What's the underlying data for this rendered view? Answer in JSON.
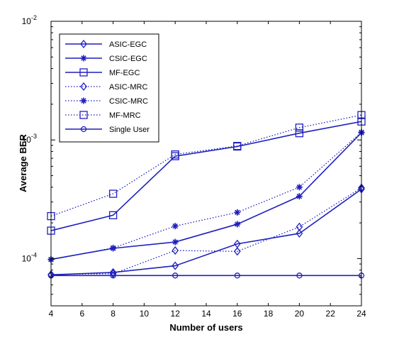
{
  "chart_data": {
    "type": "line",
    "xlabel": "Number of users",
    "ylabel": "Average BER",
    "x": [
      4,
      8,
      12,
      16,
      20,
      24
    ],
    "xlim": [
      4,
      24
    ],
    "xticks": [
      4,
      6,
      8,
      10,
      12,
      14,
      16,
      18,
      20,
      22,
      24
    ],
    "yscale": "log",
    "ylim": [
      4e-05,
      0.01
    ],
    "yticks": [
      {
        "value": 0.0001,
        "base": "10",
        "exp": "-4"
      },
      {
        "value": 0.001,
        "base": "10",
        "exp": "-3"
      },
      {
        "value": 0.01,
        "base": "10",
        "exp": "-2"
      }
    ],
    "grid": false,
    "legend_position": "top-left",
    "line_color": "#1f1fbf",
    "series": [
      {
        "name": "ASIC-EGC",
        "marker": "diamond",
        "linestyle": "solid",
        "values": [
          7.3e-05,
          7.65e-05,
          8.7e-05,
          0.000133,
          0.000163,
          0.000385
        ]
      },
      {
        "name": "CSIC-EGC",
        "marker": "star",
        "linestyle": "solid",
        "values": [
          9.85e-05,
          0.000122,
          0.000138,
          0.000195,
          0.000335,
          0.00115
        ]
      },
      {
        "name": "MF-EGC",
        "marker": "square",
        "linestyle": "solid",
        "values": [
          0.000172,
          0.000232,
          0.00073,
          0.00088,
          0.00114,
          0.00143
        ]
      },
      {
        "name": "ASIC-MRC",
        "marker": "diamond",
        "linestyle": "dotted",
        "values": [
          7.35e-05,
          7.45e-05,
          0.000117,
          0.000115,
          0.000185,
          0.000395
        ]
      },
      {
        "name": "CSIC-MRC",
        "marker": "star",
        "linestyle": "dotted",
        "values": [
          9.8e-05,
          0.000123,
          0.000188,
          0.000245,
          0.0004,
          0.00116
        ]
      },
      {
        "name": "MF-MRC",
        "marker": "square",
        "linestyle": "dotted",
        "values": [
          0.000228,
          0.000352,
          0.000755,
          0.00089,
          0.00127,
          0.00162
        ]
      },
      {
        "name": "Single User",
        "marker": "circle",
        "linestyle": "solid",
        "values": [
          7.2e-05,
          7.2e-05,
          7.2e-05,
          7.2e-05,
          7.2e-05,
          7.2e-05
        ]
      }
    ]
  }
}
